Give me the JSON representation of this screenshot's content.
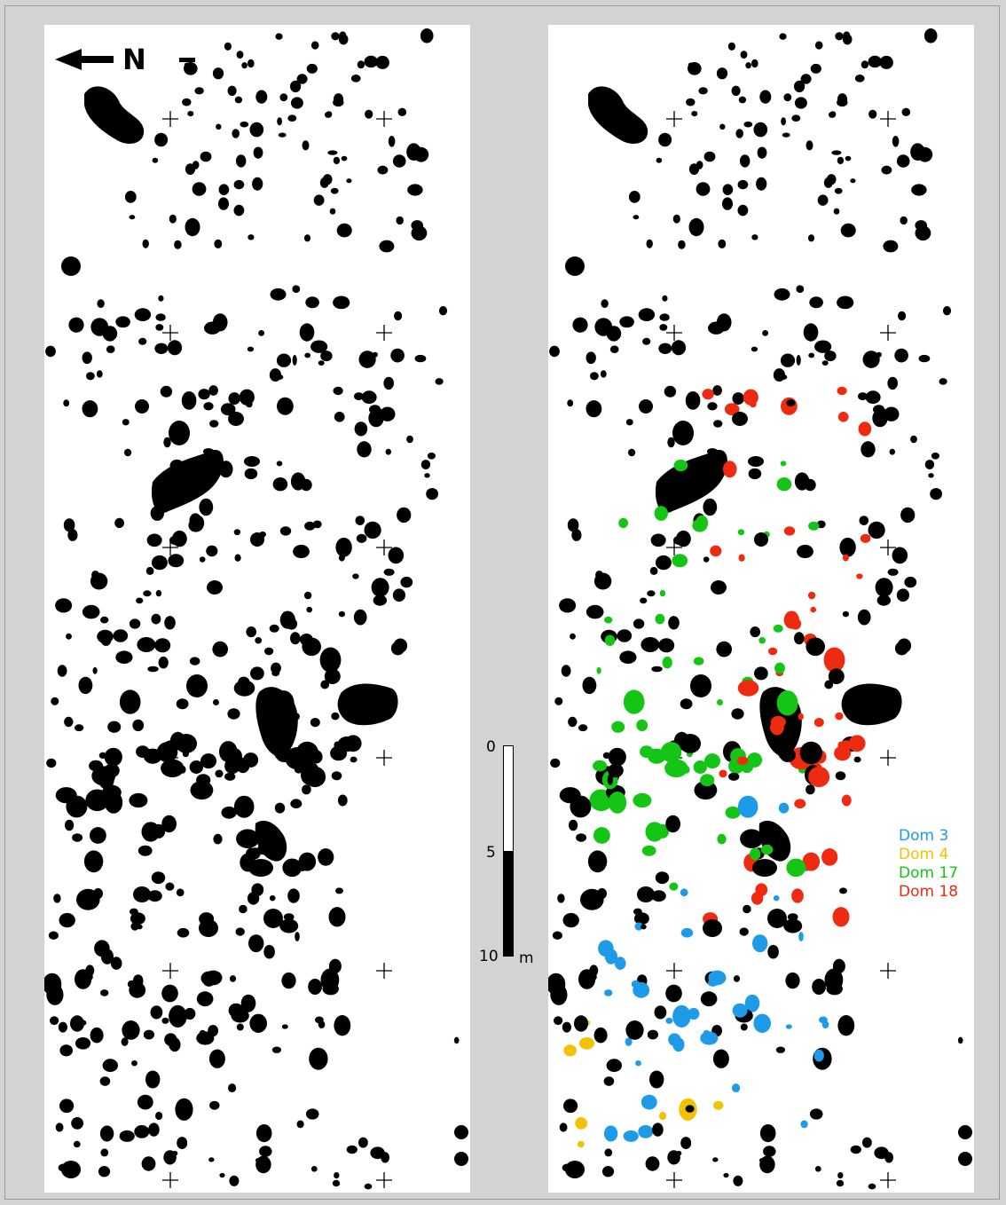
{
  "north_arrow": {
    "label": "N"
  },
  "scale": {
    "label_top": "0",
    "label_mid": "5",
    "label_bottom": "10",
    "unit": "m"
  },
  "colors": {
    "feature": "#000000",
    "dom3": "#1e9be8",
    "dom4": "#f2c200",
    "dom17": "#15c515",
    "dom18": "#ee2a10"
  },
  "legend": [
    {
      "label": "Dom 3",
      "color": "#1e9be8"
    },
    {
      "label": "Dom 4",
      "color": "#f2c200"
    },
    {
      "label": "Dom 17",
      "color": "#15c515"
    },
    {
      "label": "Dom 18",
      "color": "#ee2a10"
    }
  ]
}
